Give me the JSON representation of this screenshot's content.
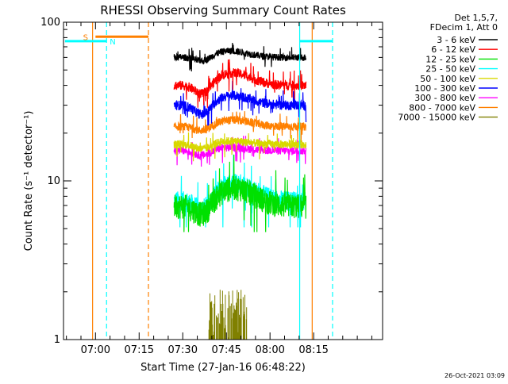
{
  "chart_data": {
    "type": "line",
    "title": "RHESSI Observing Summary Count Rates",
    "xlabel": "Start Time (27-Jan-16 06:48:22)",
    "ylabel": "Count Rate (s⁻¹ detector⁻¹)",
    "ylog": true,
    "ylim": [
      1,
      100
    ],
    "xlim_minutes": [
      6.8,
      116.5
    ],
    "grid": false,
    "legend_placement": "top-right outside",
    "legend_header": [
      "Det 1,5,7,",
      "FDecim 1, Att 0"
    ],
    "timestamp": "26-Oct-2021 03:09",
    "x_ticks": [
      {
        "label": "07:00",
        "t": 0
      },
      {
        "label": "07:15",
        "t": 15
      },
      {
        "label": "07:30",
        "t": 30
      },
      {
        "label": "07:45",
        "t": 45
      },
      {
        "label": "08:00",
        "t": 60
      },
      {
        "label": "08:15",
        "t": 75
      }
    ],
    "y_ticks": [
      {
        "label": "1",
        "v": 1
      },
      {
        "label": "10",
        "v": 10
      },
      {
        "label": "100",
        "v": 100
      }
    ],
    "data_window": [
      27,
      72.4
    ],
    "series": [
      {
        "name": "3 - 6 keV",
        "color": "#000000",
        "base": 60,
        "lo": 0.92,
        "hi": 1.06,
        "bump": 1.1,
        "mid": 46,
        "noise": 0.05
      },
      {
        "name": "6 - 12 keV",
        "color": "#ff0000",
        "base": 40,
        "lo": 0.85,
        "hi": 1.25,
        "bump": 1.2,
        "mid": 47,
        "noise": 0.07
      },
      {
        "name": "12 - 25 keV",
        "color": "#00e000",
        "base": 7,
        "lo": 0.8,
        "hi": 1.5,
        "bump": 1.3,
        "mid": 48,
        "noise": 0.18
      },
      {
        "name": "25 - 50 keV",
        "color": "#00ffff",
        "base": 7.5,
        "lo": 0.8,
        "hi": 1.45,
        "bump": 1.3,
        "mid": 48,
        "noise": 0.15
      },
      {
        "name": "50 - 100 keV",
        "color": "#d8d800",
        "base": 17,
        "lo": 0.92,
        "hi": 1.12,
        "bump": 1.05,
        "mid": 46,
        "noise": 0.06
      },
      {
        "name": "100 - 300 keV",
        "color": "#0000ff",
        "base": 30,
        "lo": 0.88,
        "hi": 1.2,
        "bump": 1.15,
        "mid": 47,
        "noise": 0.07
      },
      {
        "name": "300 - 800 keV",
        "color": "#ff00ff",
        "base": 15.5,
        "lo": 0.9,
        "hi": 1.12,
        "bump": 1.05,
        "mid": 46,
        "noise": 0.06
      },
      {
        "name": "800 - 7000 keV",
        "color": "#ff8000",
        "base": 22,
        "lo": 0.9,
        "hi": 1.15,
        "bump": 1.1,
        "mid": 47,
        "noise": 0.06
      },
      {
        "name": "7000 - 15000 keV",
        "color": "#808000",
        "base": 1,
        "lo": 1,
        "hi": 2.1,
        "bump": 1,
        "mid": 46,
        "noise": 0
      }
    ],
    "plot_order": [
      3,
      2,
      7,
      5,
      6,
      4,
      1,
      0,
      8
    ],
    "olive_window": [
      39,
      52
    ],
    "annotations": {
      "saa_start_label": "S",
      "night_start_label": "N",
      "orange_solid_lines": [
        -1,
        74.5
      ],
      "orange_dashed_lines": [
        18.2
      ],
      "cyan_solid_lines": [
        70.2
      ],
      "cyan_dashed_lines": [
        3.8,
        81.5
      ],
      "orange_segment": [
        0,
        18.2
      ],
      "orange_level": 81,
      "cyan_segments": [
        [
          -10.5,
          3.8
        ],
        [
          70.2,
          81.5
        ]
      ],
      "cyan_level": 76
    }
  }
}
